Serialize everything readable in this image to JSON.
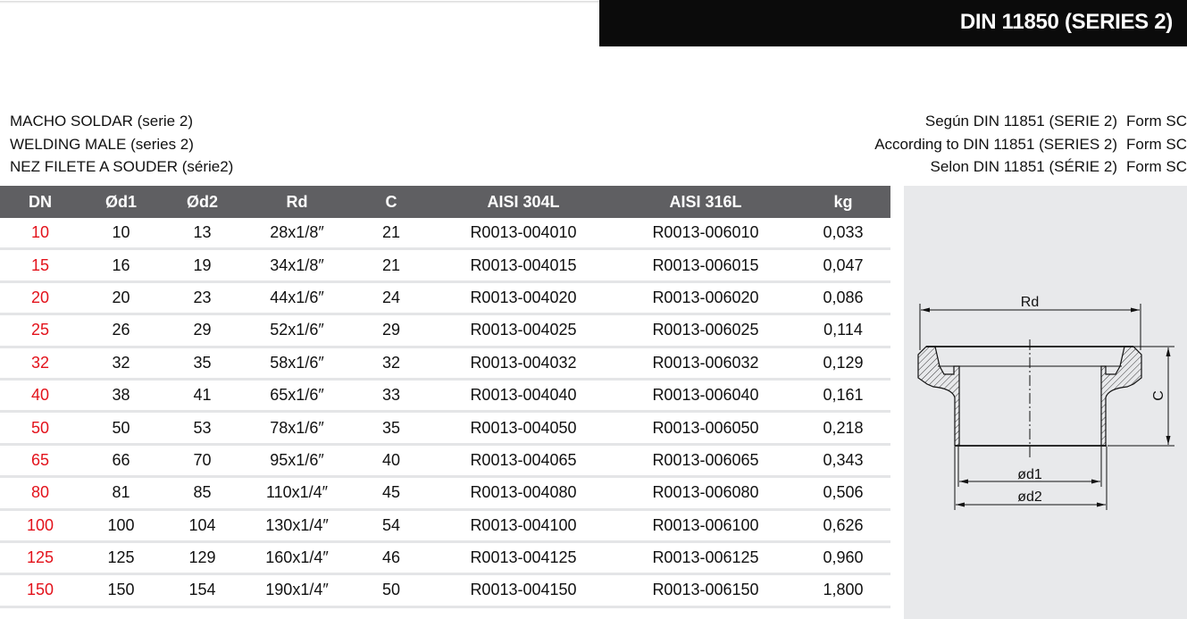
{
  "header": {
    "title": "DIN 11850 (SERIES 2)"
  },
  "description": {
    "left": [
      "MACHO SOLDAR (serie 2)",
      "WELDING MALE (series 2)",
      "NEZ FILETE A SOUDER (série2)"
    ],
    "right": [
      {
        "text": "Según DIN 11851 (SERIE 2)",
        "form": "Form SC"
      },
      {
        "text": "According to DIN 11851 (SERIES 2)",
        "form": "Form SC"
      },
      {
        "text": "Selon DIN 11851 (SÉRIE 2)",
        "form": "Form SC"
      }
    ]
  },
  "table": {
    "columns": [
      "DN",
      "Ød1",
      "Ød2",
      "Rd",
      "C",
      "AISI 304L",
      "AISI 316L",
      "kg"
    ],
    "rows": [
      [
        "10",
        "10",
        "13",
        "28x1/8″",
        "21",
        "R0013-004010",
        "R0013-006010",
        "0,033"
      ],
      [
        "15",
        "16",
        "19",
        "34x1/8″",
        "21",
        "R0013-004015",
        "R0013-006015",
        "0,047"
      ],
      [
        "20",
        "20",
        "23",
        "44x1/6″",
        "24",
        "R0013-004020",
        "R0013-006020",
        "0,086"
      ],
      [
        "25",
        "26",
        "29",
        "52x1/6″",
        "29",
        "R0013-004025",
        "R0013-006025",
        "0,114"
      ],
      [
        "32",
        "32",
        "35",
        "58x1/6″",
        "32",
        "R0013-004032",
        "R0013-006032",
        "0,129"
      ],
      [
        "40",
        "38",
        "41",
        "65x1/6″",
        "33",
        "R0013-004040",
        "R0013-006040",
        "0,161"
      ],
      [
        "50",
        "50",
        "53",
        "78x1/6″",
        "35",
        "R0013-004050",
        "R0013-006050",
        "0,218"
      ],
      [
        "65",
        "66",
        "70",
        "95x1/6″",
        "40",
        "R0013-004065",
        "R0013-006065",
        "0,343"
      ],
      [
        "80",
        "81",
        "85",
        "110x1/4″",
        "45",
        "R0013-004080",
        "R0013-006080",
        "0,506"
      ],
      [
        "100",
        "100",
        "104",
        "130x1/4″",
        "54",
        "R0013-004100",
        "R0013-006100",
        "0,626"
      ],
      [
        "125",
        "125",
        "129",
        "160x1/4″",
        "46",
        "R0013-004125",
        "R0013-006125",
        "0,960"
      ],
      [
        "150",
        "150",
        "154",
        "190x1/4″",
        "50",
        "R0013-004150",
        "R0013-006150",
        "1,800"
      ]
    ]
  },
  "diagram": {
    "labels": {
      "rd": "Rd",
      "c": "C",
      "d1": "ød1",
      "d2": "ød2"
    }
  },
  "colors": {
    "header_bg": "#5f5f62",
    "dn_text": "#e3121b",
    "title_bg": "#0b0b0b",
    "panel_bg": "#e8e9eb"
  }
}
